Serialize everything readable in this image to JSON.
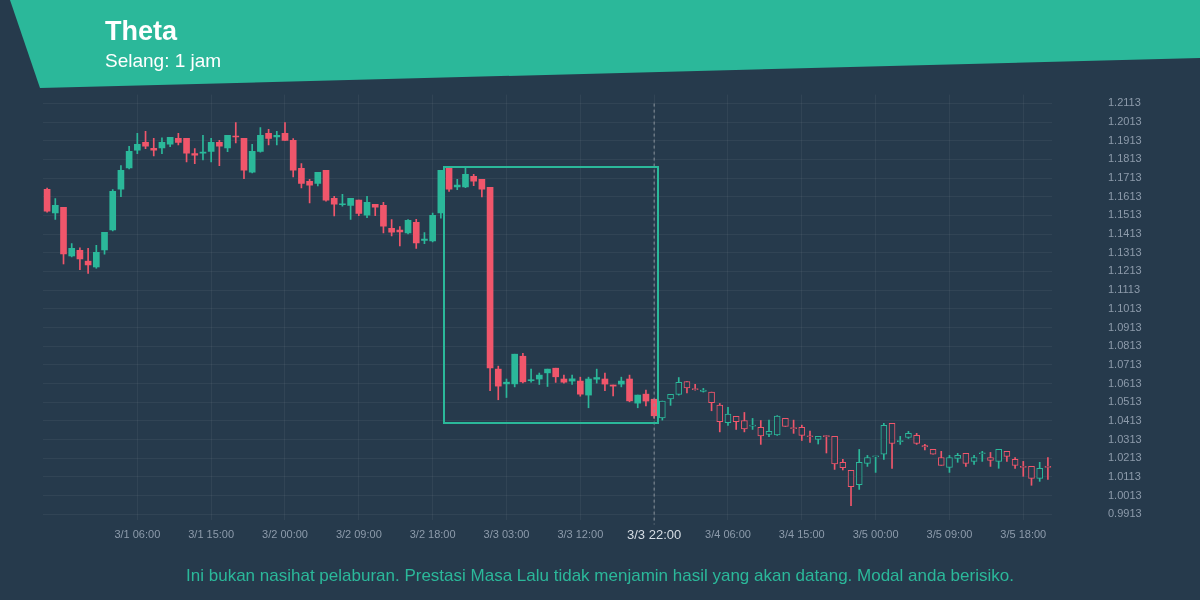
{
  "chart_data": {
    "type": "candlestick",
    "title": "Theta",
    "subtitle": "Selang: 1 jam",
    "annotations": [
      "Ini bukan nasihat pelaburan. Prestasi Masa Lalu tidak menjamin hasil yang akan datang. Modal anda berisiko."
    ],
    "categories": [
      null,
      null,
      null,
      null,
      null,
      null,
      null,
      null,
      null,
      null,
      null,
      "3/1 06:00",
      null,
      null,
      null,
      null,
      null,
      null,
      null,
      null,
      "3/1 15:00",
      null,
      null,
      null,
      null,
      null,
      null,
      null,
      null,
      "3/2 00:00",
      null,
      null,
      null,
      null,
      null,
      null,
      null,
      null,
      "3/2 09:00",
      null,
      null,
      null,
      null,
      null,
      null,
      null,
      null,
      "3/2 18:00",
      null,
      null,
      null,
      null,
      null,
      null,
      null,
      null,
      "3/3 03:00",
      null,
      null,
      null,
      null,
      null,
      null,
      null,
      null,
      "3/3 12:00",
      null,
      null,
      null,
      null,
      null,
      null,
      null,
      null,
      "3/3 22:00",
      null,
      null,
      null,
      null,
      null,
      null,
      null,
      null,
      "3/4 06:00",
      null,
      null,
      null,
      null,
      null,
      null,
      null,
      null,
      "3/4 15:00",
      null,
      null,
      null,
      null,
      null,
      null,
      null,
      null,
      "3/5 00:00",
      null,
      null,
      null,
      null,
      null,
      null,
      null,
      null,
      "3/5 09:00",
      null,
      null,
      null,
      null,
      null,
      null,
      null,
      null,
      "3/5 18:00",
      null,
      null,
      null
    ],
    "ohlc": [
      [
        1.1653,
        1.166,
        1.153,
        1.1536
      ],
      [
        1.1526,
        1.1603,
        1.1491,
        1.1567
      ],
      [
        1.1557,
        1.1557,
        1.1253,
        1.1307
      ],
      [
        1.1296,
        1.1362,
        1.1291,
        1.1337
      ],
      [
        1.1326,
        1.1339,
        1.1223,
        1.128
      ],
      [
        1.1268,
        1.1337,
        1.1202,
        1.1248
      ],
      [
        1.1237,
        1.1353,
        1.123,
        1.1316
      ],
      [
        1.1328,
        1.1423,
        1.1305,
        1.1423
      ],
      [
        1.1435,
        1.1651,
        1.143,
        1.1642
      ],
      [
        1.1654,
        1.178,
        1.1614,
        1.1755
      ],
      [
        1.1767,
        1.1883,
        1.1762,
        1.1856
      ],
      [
        1.1863,
        1.1952,
        1.1844,
        1.1894
      ],
      [
        1.1904,
        1.1963,
        1.1871,
        1.1884
      ],
      [
        1.1872,
        1.1926,
        1.1831,
        1.1863
      ],
      [
        1.1874,
        1.1929,
        1.1844,
        1.1904
      ],
      [
        1.1895,
        1.1931,
        1.1881,
        1.1931
      ],
      [
        1.1926,
        1.1952,
        1.189,
        1.1904
      ],
      [
        1.1926,
        1.1926,
        1.1799,
        1.1847
      ],
      [
        1.1844,
        1.1871,
        1.179,
        1.1836
      ],
      [
        1.1846,
        1.1942,
        1.181,
        1.1852
      ],
      [
        1.1856,
        1.1926,
        1.1799,
        1.1904
      ],
      [
        1.1904,
        1.1915,
        1.178,
        1.1884
      ],
      [
        1.1874,
        1.1942,
        1.1855,
        1.1942
      ],
      [
        1.1937,
        1.201,
        1.1901,
        1.1933
      ],
      [
        1.1926,
        1.1926,
        1.171,
        1.1755
      ],
      [
        1.1744,
        1.1894,
        1.174,
        1.1856
      ],
      [
        1.1856,
        1.1983,
        1.1852,
        1.1942
      ],
      [
        1.1952,
        1.1974,
        1.189,
        1.1926
      ],
      [
        1.1933,
        1.1963,
        1.189,
        1.1942
      ],
      [
        1.1952,
        1.201,
        1.1915,
        1.1915
      ],
      [
        1.1915,
        1.1924,
        1.1719,
        1.1755
      ],
      [
        1.1765,
        1.179,
        1.166,
        1.1685
      ],
      [
        1.1696,
        1.1706,
        1.158,
        1.1675
      ],
      [
        1.1685,
        1.1744,
        1.1671,
        1.1744
      ],
      [
        1.1755,
        1.1755,
        1.159,
        1.1595
      ],
      [
        1.1605,
        1.1615,
        1.151,
        1.1573
      ],
      [
        1.157,
        1.1626,
        1.1562,
        1.1573
      ],
      [
        1.1567,
        1.1605,
        1.1491,
        1.1605
      ],
      [
        1.1595,
        1.1595,
        1.1512,
        1.1524
      ],
      [
        1.1514,
        1.1615,
        1.1501,
        1.1583
      ],
      [
        1.1573,
        1.1573,
        1.1512,
        1.1557
      ],
      [
        1.1567,
        1.1583,
        1.1419,
        1.1455
      ],
      [
        1.1444,
        1.1491,
        1.1403,
        1.1423
      ],
      [
        1.1434,
        1.1453,
        1.135,
        1.1425
      ],
      [
        1.1419,
        1.1491,
        1.1414,
        1.1487
      ],
      [
        1.1476,
        1.1492,
        1.1336,
        1.1366
      ],
      [
        1.1379,
        1.1421,
        1.1362,
        1.1387
      ],
      [
        1.1376,
        1.1525,
        1.1371,
        1.1514
      ],
      [
        1.1526,
        1.1755,
        1.1499,
        1.1755
      ],
      [
        1.1765,
        1.1765,
        1.1641,
        1.1653
      ],
      [
        1.1666,
        1.1706,
        1.1651,
        1.1675
      ],
      [
        1.1665,
        1.1765,
        1.1662,
        1.1733
      ],
      [
        1.1722,
        1.1733,
        1.1673,
        1.1697
      ],
      [
        1.1706,
        1.1706,
        1.1612,
        1.1653
      ],
      [
        1.1664,
        1.1664,
        1.0574,
        1.0697
      ],
      [
        1.069,
        1.0706,
        1.0526,
        1.0599
      ],
      [
        1.0611,
        1.0637,
        1.0538,
        1.062
      ],
      [
        1.0611,
        1.077,
        1.0595,
        1.077
      ],
      [
        1.0759,
        1.0775,
        1.0616,
        1.0622
      ],
      [
        1.0628,
        1.069,
        1.062,
        1.0631
      ],
      [
        1.0637,
        1.0669,
        1.0608,
        1.0658
      ],
      [
        1.067,
        1.069,
        1.0597,
        1.069
      ],
      [
        1.0695,
        1.0695,
        1.0619,
        1.0649
      ],
      [
        1.0637,
        1.0658,
        1.0615,
        1.062
      ],
      [
        1.0626,
        1.0658,
        1.0608,
        1.0638
      ],
      [
        1.0626,
        1.0647,
        1.0545,
        1.0556
      ],
      [
        1.0551,
        1.0647,
        1.0483,
        1.0637
      ],
      [
        1.0636,
        1.069,
        1.0615,
        1.0645
      ],
      [
        1.0637,
        1.0669,
        1.0574,
        1.061
      ],
      [
        1.0605,
        1.0605,
        1.0547,
        1.0599
      ],
      [
        1.061,
        1.0647,
        1.0595,
        1.0626
      ],
      [
        1.0637,
        1.0658,
        1.0515,
        1.052
      ],
      [
        1.0508,
        1.0551,
        1.0483,
        1.0551
      ],
      [
        1.0556,
        1.0578,
        1.0493,
        1.0519
      ],
      [
        1.0529,
        1.0529,
        1.0427,
        1.044
      ],
      [
        1.0429,
        1.0519,
        1.0417,
        1.0519
      ],
      [
        1.0531,
        1.0555,
        1.0496,
        1.0555
      ],
      [
        1.0555,
        1.0645,
        1.0551,
        1.0619
      ],
      [
        1.0624,
        1.0624,
        1.0563,
        1.059
      ],
      [
        1.0584,
        1.0608,
        1.0577,
        1.058
      ],
      [
        1.057,
        1.0587,
        1.0567,
        1.0578
      ],
      [
        1.0567,
        1.0567,
        1.0467,
        1.051
      ],
      [
        1.0497,
        1.0506,
        1.0354,
        1.0408
      ],
      [
        1.0403,
        1.0485,
        1.0389,
        1.0449
      ],
      [
        1.0437,
        1.0437,
        1.0367,
        1.0408
      ],
      [
        1.0415,
        1.0458,
        1.0354,
        1.037
      ],
      [
        1.0385,
        1.0426,
        1.0367,
        1.0389
      ],
      [
        1.0378,
        1.0415,
        1.0287,
        1.0333
      ],
      [
        1.034,
        1.0417,
        1.0328,
        1.0357
      ],
      [
        1.0338,
        1.0441,
        1.0335,
        1.0438
      ],
      [
        1.0426,
        1.0426,
        1.0383,
        1.0383
      ],
      [
        1.0375,
        1.0417,
        1.0346,
        1.0371
      ],
      [
        1.0378,
        1.039,
        1.0308,
        1.0335
      ],
      [
        1.0332,
        1.0358,
        1.0298,
        1.0328
      ],
      [
        1.0314,
        1.033,
        1.0289,
        1.033
      ],
      [
        1.0334,
        1.0334,
        1.0241,
        1.0328
      ],
      [
        1.033,
        1.033,
        1.0153,
        1.0183
      ],
      [
        1.0191,
        1.0207,
        1.015,
        1.0162
      ],
      [
        1.0148,
        1.0148,
        0.9959,
        1.006
      ],
      [
        1.0071,
        1.026,
        1.0046,
        1.0191
      ],
      [
        1.0185,
        1.0228,
        1.0169,
        1.0217
      ],
      [
        1.022,
        1.0223,
        1.0137,
        1.0223
      ],
      [
        1.0234,
        1.04,
        1.0207,
        1.0389
      ],
      [
        1.04,
        1.04,
        1.0159,
        1.0292
      ],
      [
        1.0302,
        1.033,
        1.0287,
        1.0308
      ],
      [
        1.0324,
        1.0357,
        1.0319,
        1.0346
      ],
      [
        1.0335,
        1.0346,
        1.0287,
        1.0292
      ],
      [
        1.028,
        1.0287,
        1.0258,
        1.0274
      ],
      [
        1.026,
        1.026,
        1.0234,
        1.0234
      ],
      [
        1.0217,
        1.025,
        1.0175,
        1.0175
      ],
      [
        1.0164,
        1.0228,
        1.0137,
        1.0217
      ],
      [
        1.0212,
        1.0239,
        1.0191,
        1.0228
      ],
      [
        1.0239,
        1.0239,
        1.0169,
        1.0185
      ],
      [
        1.0196,
        1.0228,
        1.018,
        1.0217
      ],
      [
        1.0237,
        1.025,
        1.0196,
        1.0241
      ],
      [
        1.0217,
        1.0244,
        1.0169,
        1.0201
      ],
      [
        1.0196,
        1.026,
        1.0159,
        1.026
      ],
      [
        1.025,
        1.025,
        1.0196,
        1.0223
      ],
      [
        1.0207,
        1.0217,
        1.0159,
        1.0175
      ],
      [
        1.0167,
        1.0196,
        1.0116,
        1.0164
      ],
      [
        1.0169,
        1.0169,
        1.0068,
        1.0105
      ],
      [
        1.0105,
        1.0191,
        1.0089,
        1.0159
      ],
      [
        1.0169,
        1.0217,
        1.01,
        1.0164
      ]
    ],
    "colors": [
      "#f0566b",
      "#2bb89a",
      "#f0566b",
      "#2bb89a",
      "#f0566b",
      "#f0566b",
      "#2bb89a",
      "#2bb89a",
      "#2bb89a",
      "#2bb89a",
      "#2bb89a",
      "#2bb89a",
      "#f0566b",
      "#f0566b",
      "#2bb89a",
      "#2bb89a",
      "#f0566b",
      "#f0566b",
      "#f0566b",
      "#2bb89a",
      "#2bb89a",
      "#f0566b",
      "#2bb89a",
      "#f0566b",
      "#f0566b",
      "#2bb89a",
      "#2bb89a",
      "#f0566b",
      "#2bb89a",
      "#f0566b",
      "#f0566b",
      "#f0566b",
      "#f0566b",
      "#2bb89a",
      "#f0566b",
      "#f0566b",
      "#2bb89a",
      "#2bb89a",
      "#f0566b",
      "#2bb89a",
      "#f0566b",
      "#f0566b",
      "#f0566b",
      "#f0566b",
      "#2bb89a",
      "#f0566b",
      "#2bb89a",
      "#2bb89a",
      "#2bb89a",
      "#f0566b",
      "#2bb89a",
      "#2bb89a",
      "#f0566b",
      "#f0566b",
      "#f0566b",
      "#f0566b",
      "#2bb89a",
      "#2bb89a",
      "#f0566b",
      "#2bb89a",
      "#2bb89a",
      "#2bb89a",
      "#f0566b",
      "#f0566b",
      "#2bb89a",
      "#f0566b",
      "#2bb89a",
      "#2bb89a",
      "#f0566b",
      "#f0566b",
      "#2bb89a",
      "#f0566b",
      "#2bb89a",
      "#f0566b",
      "#f0566b",
      "#2bb89a",
      "#2bb89a",
      "#2bb89a",
      "#f0566b",
      "#f0566b",
      "#2bb89a",
      "#f0566b",
      "#f0566b",
      "#2bb89a",
      "#f0566b",
      "#f0566b",
      "#2bb89a",
      "#f0566b",
      "#2bb89a",
      "#2bb89a",
      "#f0566b",
      "#f0566b",
      "#f0566b",
      "#f0566b",
      "#2bb89a",
      "#f0566b",
      "#f0566b",
      "#f0566b",
      "#f0566b",
      "#2bb89a",
      "#2bb89a",
      "#2bb89a",
      "#2bb89a",
      "#f0566b",
      "#2bb89a",
      "#2bb89a",
      "#f0566b",
      "#f0566b",
      "#f0566b",
      "#f0566b",
      "#2bb89a",
      "#2bb89a",
      "#f0566b",
      "#2bb89a",
      "#2bb89a",
      "#f0566b",
      "#2bb89a",
      "#f0566b",
      "#f0566b",
      "#f0566b",
      "#f0566b",
      "#2bb89a",
      "#f0566b"
    ],
    "ylim": [
      0.988,
      1.216
    ],
    "yticks": [
      0.9913,
      1.0013,
      1.0113,
      1.0213,
      1.0313,
      1.0413,
      1.0513,
      1.0613,
      1.0713,
      1.0813,
      1.0913,
      1.1013,
      1.1113,
      1.1213,
      1.1313,
      1.1413,
      1.1513,
      1.1613,
      1.1713,
      1.1813,
      1.1913,
      1.2013,
      1.2113
    ],
    "ref_lines": [
      {
        "axis": "x",
        "value": "3/3 22:00",
        "color": "#8a939c",
        "line_style": "dashed"
      }
    ],
    "grid": true,
    "legend": false
  }
}
